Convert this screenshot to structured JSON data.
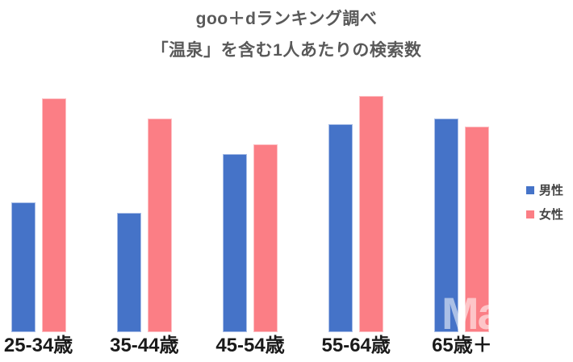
{
  "header": {
    "title": "goo＋dランキング調べ",
    "subtitle": "「温泉」を含む1人あたりの検索数"
  },
  "watermark": "Ma",
  "colors": {
    "background": "#FFFFFF",
    "male": "#4573C8",
    "male_border": "#A9BEE7",
    "female": "#FB7E85",
    "female_border": "#FDC0C4",
    "title_text": "#595959",
    "category_text": "#1A1A1A",
    "legend_text": "#444444"
  },
  "legend": {
    "position": "right",
    "items": [
      {
        "label": "男性",
        "color": "#4573C8"
      },
      {
        "label": "女性",
        "color": "#FB7E85"
      }
    ]
  },
  "chart_data": {
    "type": "bar",
    "title": "goo＋dランキング調べ",
    "subtitle": "「温泉」を含む1人あたりの検索数",
    "categories": [
      "25-34歳",
      "35-44歳",
      "45-54歳",
      "55-64歳",
      "65歳＋"
    ],
    "series": [
      {
        "name": "男性",
        "color": "#4573C8",
        "border": "#A9BEE7",
        "values": [
          51,
          47,
          70,
          82,
          84
        ]
      },
      {
        "name": "女性",
        "color": "#FB7E85",
        "border": "#FDC0C4",
        "values": [
          92,
          84,
          74,
          93,
          81
        ]
      }
    ],
    "xlabel": "",
    "ylabel": "",
    "ylim": [
      0,
      100
    ],
    "grid": false,
    "legend_position": "right",
    "value_scale": "relative — no y-axis shown in source; values estimated from bar heights (tallest ≈ 93)"
  }
}
